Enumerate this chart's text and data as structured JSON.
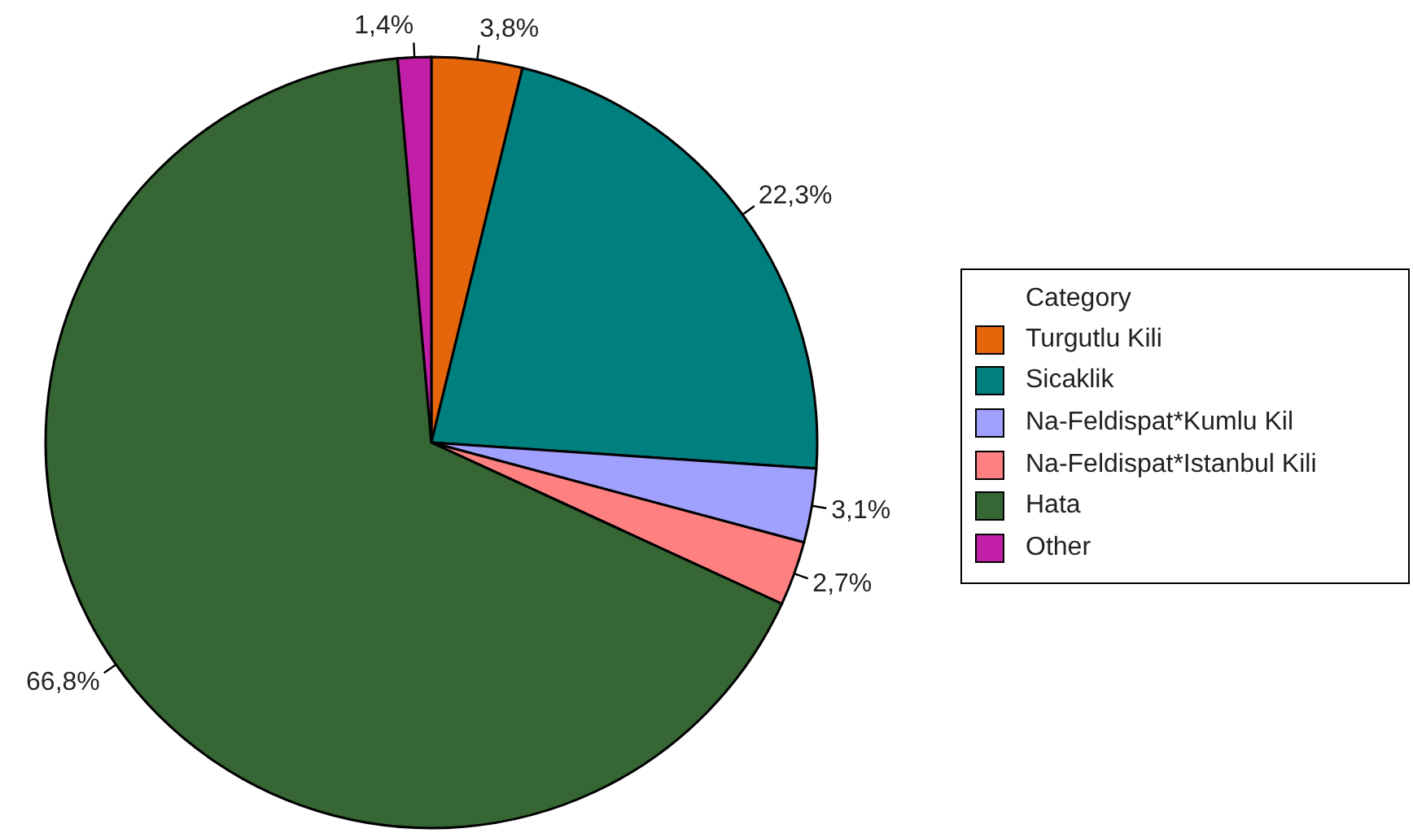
{
  "chart_data": {
    "type": "pie",
    "categories": [
      "Turgutlu Kili",
      "Sicaklik",
      "Na-Feldispat*Kumlu Kil",
      "Na-Feldispat*Istanbul Kili",
      "Hata",
      "Other"
    ],
    "values": [
      3.8,
      22.3,
      3.1,
      2.7,
      66.8,
      1.4
    ],
    "colors": [
      "#e4650a",
      "#007f7f",
      "#a0a0ff",
      "#ff8080",
      "#356633",
      "#c21fa8"
    ],
    "value_labels": [
      "3,8%",
      "22,3%",
      "3,1%",
      "2,7%",
      "66,8%",
      "1,4%"
    ],
    "legend": "right",
    "legend_title": "Category"
  }
}
